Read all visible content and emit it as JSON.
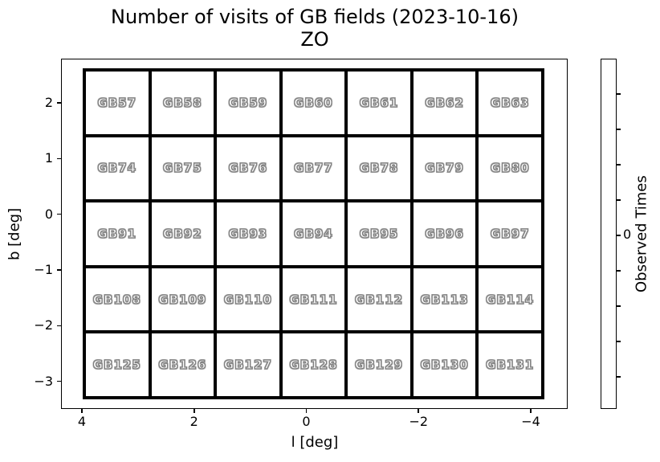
{
  "title": {
    "line1": "Number of visits of GB fields (2023-10-16)",
    "line2": "ZO"
  },
  "axes": {
    "xlabel": "l [deg]",
    "ylabel": "b [deg]",
    "x_ticks": [
      {
        "value": 4,
        "label": "4"
      },
      {
        "value": 2,
        "label": "2"
      },
      {
        "value": 0,
        "label": "0"
      },
      {
        "value": -2,
        "label": "−2"
      },
      {
        "value": -4,
        "label": "−4"
      }
    ],
    "y_ticks": [
      {
        "value": 2,
        "label": "2"
      },
      {
        "value": 1,
        "label": "1"
      },
      {
        "value": 0,
        "label": "0"
      },
      {
        "value": -1,
        "label": "−1"
      },
      {
        "value": -2,
        "label": "−2"
      },
      {
        "value": -3,
        "label": "−3"
      }
    ]
  },
  "grid": {
    "rows": [
      [
        "GB57",
        "GB58",
        "GB59",
        "GB60",
        "GB61",
        "GB62",
        "GB63"
      ],
      [
        "GB74",
        "GB75",
        "GB76",
        "GB77",
        "GB78",
        "GB79",
        "GB80"
      ],
      [
        "GB91",
        "GB92",
        "GB93",
        "GB94",
        "GB95",
        "GB96",
        "GB97"
      ],
      [
        "GB108",
        "GB109",
        "GB110",
        "GB111",
        "GB112",
        "GB113",
        "GB114"
      ],
      [
        "GB125",
        "GB126",
        "GB127",
        "GB128",
        "GB129",
        "GB130",
        "GB131"
      ]
    ]
  },
  "colorbar": {
    "label": "Observed Times",
    "tick_count": 9,
    "labeled_tick_index": 4,
    "labeled_tick_text": "0"
  },
  "colors": {
    "background": "#ffffff",
    "grid_line": "#000000",
    "cell_fill": "#ffffff",
    "field_label_fill": "#ffffff",
    "field_label_outline": "#7f7f7f"
  },
  "chart_data": {
    "type": "heatmap",
    "title": "Number of visits of GB fields (2023-10-16)",
    "subtitle": "ZO",
    "xlabel": "l [deg]",
    "ylabel": "b [deg]",
    "x_axis_reversed": true,
    "x_tick_values": [
      4,
      2,
      0,
      -2,
      -4
    ],
    "y_tick_values": [
      2,
      1,
      0,
      -1,
      -2,
      -3
    ],
    "grid_shape": {
      "rows": 5,
      "cols": 7
    },
    "field_labels": [
      [
        "GB57",
        "GB58",
        "GB59",
        "GB60",
        "GB61",
        "GB62",
        "GB63"
      ],
      [
        "GB74",
        "GB75",
        "GB76",
        "GB77",
        "GB78",
        "GB79",
        "GB80"
      ],
      [
        "GB91",
        "GB92",
        "GB93",
        "GB94",
        "GB95",
        "GB96",
        "GB97"
      ],
      [
        "GB108",
        "GB109",
        "GB110",
        "GB111",
        "GB112",
        "GB113",
        "GB114"
      ],
      [
        "GB125",
        "GB126",
        "GB127",
        "GB128",
        "GB129",
        "GB130",
        "GB131"
      ]
    ],
    "observed_times": [
      [
        0,
        0,
        0,
        0,
        0,
        0,
        0
      ],
      [
        0,
        0,
        0,
        0,
        0,
        0,
        0
      ],
      [
        0,
        0,
        0,
        0,
        0,
        0,
        0
      ],
      [
        0,
        0,
        0,
        0,
        0,
        0,
        0
      ],
      [
        0,
        0,
        0,
        0,
        0,
        0,
        0
      ]
    ],
    "colorbar": {
      "label": "Observed Times",
      "visible_tick_label": "0"
    },
    "legend": "none",
    "grid_on": false
  }
}
